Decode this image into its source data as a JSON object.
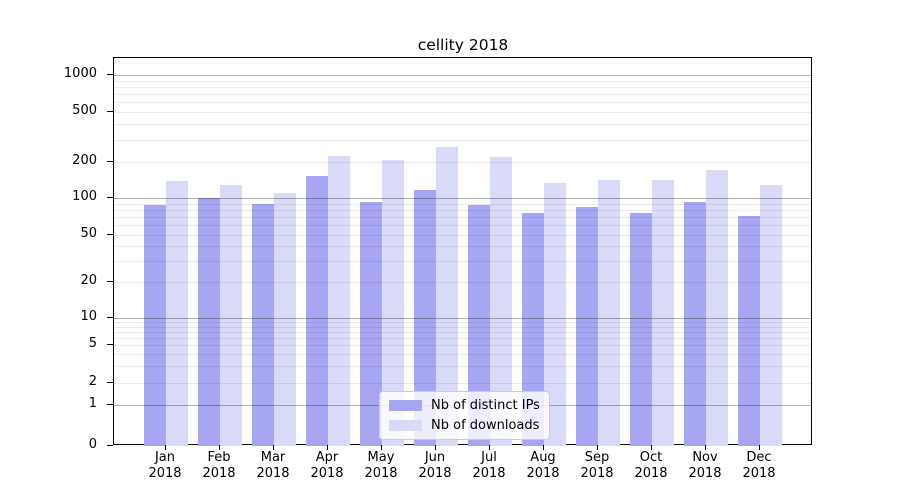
{
  "chart_data": {
    "type": "bar",
    "title": "cellity 2018",
    "categories": [
      "Jan",
      "Feb",
      "Mar",
      "Apr",
      "May",
      "Jun",
      "Jul",
      "Aug",
      "Sep",
      "Oct",
      "Nov",
      "Dec"
    ],
    "year_label": "2018",
    "series": [
      {
        "name": "Nb of distinct IPs",
        "color": "#a6a6f2",
        "values": [
          87,
          100,
          90,
          152,
          92,
          117,
          88,
          75,
          84,
          75,
          92,
          72
        ]
      },
      {
        "name": "Nb of downloads",
        "color": "#d9d9f8",
        "values": [
          139,
          129,
          110,
          220,
          207,
          263,
          218,
          133,
          140,
          140,
          170,
          128
        ]
      }
    ],
    "yscale": "symlog",
    "yticks": [
      0,
      1,
      2,
      5,
      10,
      20,
      50,
      100,
      200,
      500,
      1000
    ],
    "ylim": [
      0,
      1400
    ],
    "xlabel": "",
    "ylabel": "",
    "grid": true,
    "grid_over_bars": true,
    "legend_position": "lower-center"
  },
  "colors": {
    "major_grid": "rgba(0,0,0,0.30)",
    "minor_grid": "rgba(0,0,0,0.08)",
    "spine": "#000000",
    "background": "#ffffff"
  }
}
